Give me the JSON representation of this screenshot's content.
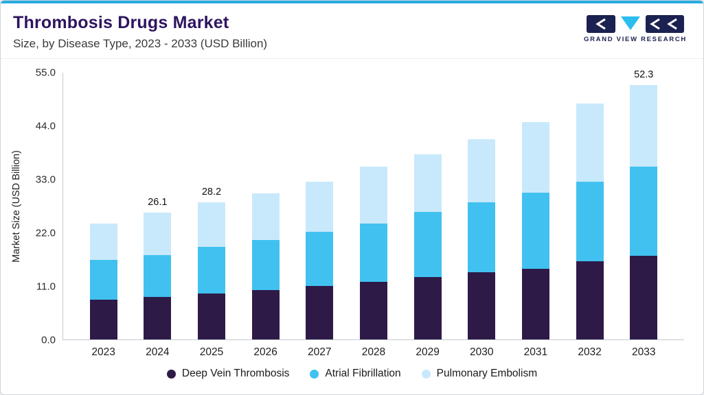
{
  "header": {
    "title": "Thrombosis Drugs Market",
    "subtitle": "Size, by Disease Type, 2023 - 2033 (USD Billion)",
    "logo_text": "GRAND VIEW RESEARCH"
  },
  "colors": {
    "accent_line": "#29abe2",
    "title_purple": "#2e1460",
    "logo_navy": "#1b2150",
    "logo_cyan": "#2bbdee"
  },
  "chart_data": {
    "type": "bar",
    "stacked": true,
    "title": "Thrombosis Drugs Market Size, by Disease Type, 2023 - 2033 (USD Billion)",
    "categories": [
      "2023",
      "2024",
      "2025",
      "2026",
      "2027",
      "2028",
      "2029",
      "2030",
      "2031",
      "2032",
      "2033"
    ],
    "series": [
      {
        "name": "Deep Vein Thrombosis",
        "color": "#2e1a47",
        "values": [
          8.2,
          8.7,
          9.4,
          10.2,
          11.0,
          11.8,
          12.8,
          13.8,
          14.6,
          16.1,
          17.2
        ]
      },
      {
        "name": "Atrial Fibrillation",
        "color": "#41c1f0",
        "values": [
          8.2,
          8.7,
          9.6,
          10.3,
          11.1,
          12.1,
          13.4,
          14.4,
          15.6,
          16.4,
          18.4
        ]
      },
      {
        "name": "Pulmonary Embolism",
        "color": "#c8e9fb",
        "values": [
          7.5,
          8.7,
          9.2,
          9.6,
          10.4,
          11.6,
          11.9,
          13.0,
          14.5,
          16.0,
          16.7
        ]
      }
    ],
    "totals": [
      23.9,
      26.1,
      28.2,
      30.1,
      32.5,
      35.5,
      38.1,
      41.2,
      44.7,
      48.5,
      52.3
    ],
    "totals_labels": [
      "",
      "26.1",
      "28.2",
      "",
      "",
      "",
      "",
      "",
      "",
      "",
      "52.3"
    ],
    "ylabel": "Market Size (USD Billion)",
    "yticks": [
      "0.0",
      "11.0",
      "22.0",
      "33.0",
      "44.0",
      "55.0"
    ],
    "ylim": [
      0,
      55
    ],
    "grid": false,
    "legend_position": "bottom"
  }
}
